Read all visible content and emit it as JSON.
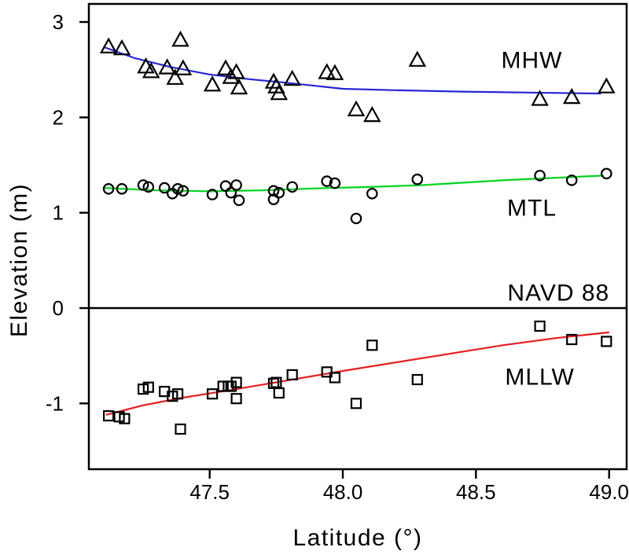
{
  "figure": {
    "background": "#ffffff",
    "text_color": "#000000",
    "axis_color": "#000000"
  },
  "chart_data": {
    "type": "scatter",
    "title": "",
    "xlabel": "Latitude (°)",
    "ylabel": "Elevation (m)",
    "xlim": [
      47.046,
      49.066
    ],
    "ylim": [
      -1.69,
      3.19
    ],
    "x_ticks": [
      47.5,
      48.0,
      48.5,
      49.0
    ],
    "x_tick_labels": [
      "47.5",
      "48.0",
      "48.5",
      "49.0"
    ],
    "y_ticks": [
      3,
      2,
      1,
      0,
      -1
    ],
    "y_tick_labels": [
      "3",
      "2",
      "1",
      "0",
      "-1"
    ],
    "grid": false,
    "legend_position": "in-plot-annotations",
    "reference_line": {
      "label": "NAVD 88",
      "y": 0,
      "color": "#000000"
    },
    "annotations": [
      {
        "text": "MHW",
        "x": 48.71,
        "y": 2.6,
        "color": "#000000"
      },
      {
        "text": "MTL",
        "x": 48.71,
        "y": 1.05,
        "color": "#000000"
      },
      {
        "text": "NAVD 88",
        "x": 48.81,
        "y": 0.16,
        "color": "#000000"
      },
      {
        "text": "MLLW",
        "x": 48.74,
        "y": -0.72,
        "color": "#000000"
      }
    ],
    "series": [
      {
        "name": "MHW",
        "marker": "triangle",
        "marker_color": "#000000",
        "trend_color": "#2626d6",
        "points": [
          [
            47.12,
            2.74
          ],
          [
            47.17,
            2.72
          ],
          [
            47.26,
            2.53
          ],
          [
            47.28,
            2.48
          ],
          [
            47.34,
            2.52
          ],
          [
            47.37,
            2.41
          ],
          [
            47.39,
            2.81
          ],
          [
            47.4,
            2.51
          ],
          [
            47.51,
            2.34
          ],
          [
            47.56,
            2.51
          ],
          [
            47.58,
            2.42
          ],
          [
            47.6,
            2.47
          ],
          [
            47.61,
            2.31
          ],
          [
            47.74,
            2.37
          ],
          [
            47.75,
            2.32
          ],
          [
            47.76,
            2.25
          ],
          [
            47.81,
            2.4
          ],
          [
            47.94,
            2.47
          ],
          [
            47.97,
            2.46
          ],
          [
            48.05,
            2.08
          ],
          [
            48.11,
            2.02
          ],
          [
            48.28,
            2.6
          ],
          [
            48.74,
            2.19
          ],
          [
            48.86,
            2.21
          ],
          [
            48.99,
            2.32
          ]
        ],
        "trend": [
          [
            47.1,
            2.74
          ],
          [
            47.22,
            2.62
          ],
          [
            47.35,
            2.53
          ],
          [
            47.5,
            2.45
          ],
          [
            47.65,
            2.4
          ],
          [
            47.8,
            2.36
          ],
          [
            48.0,
            2.3
          ],
          [
            48.2,
            2.285
          ],
          [
            48.45,
            2.27
          ],
          [
            48.7,
            2.26
          ],
          [
            48.97,
            2.25
          ]
        ]
      },
      {
        "name": "MTL",
        "marker": "circle",
        "marker_color": "#000000",
        "trend_color": "#00d41e",
        "points": [
          [
            47.12,
            1.25
          ],
          [
            47.17,
            1.25
          ],
          [
            47.25,
            1.29
          ],
          [
            47.27,
            1.27
          ],
          [
            47.33,
            1.26
          ],
          [
            47.36,
            1.2
          ],
          [
            47.38,
            1.25
          ],
          [
            47.4,
            1.23
          ],
          [
            47.51,
            1.19
          ],
          [
            47.56,
            1.28
          ],
          [
            47.58,
            1.21
          ],
          [
            47.6,
            1.29
          ],
          [
            47.61,
            1.13
          ],
          [
            47.74,
            1.23
          ],
          [
            47.74,
            1.14
          ],
          [
            47.76,
            1.21
          ],
          [
            47.81,
            1.27
          ],
          [
            47.94,
            1.33
          ],
          [
            47.97,
            1.31
          ],
          [
            48.05,
            0.94
          ],
          [
            48.11,
            1.2
          ],
          [
            48.28,
            1.35
          ],
          [
            48.74,
            1.39
          ],
          [
            48.86,
            1.34
          ],
          [
            48.99,
            1.41
          ]
        ],
        "trend": [
          [
            47.1,
            1.26
          ],
          [
            47.3,
            1.235
          ],
          [
            47.5,
            1.225
          ],
          [
            47.7,
            1.235
          ],
          [
            47.9,
            1.255
          ],
          [
            48.1,
            1.27
          ],
          [
            48.3,
            1.29
          ],
          [
            48.6,
            1.34
          ],
          [
            48.98,
            1.39
          ]
        ]
      },
      {
        "name": "MLLW",
        "marker": "square",
        "marker_color": "#000000",
        "trend_color": "#e81c1c",
        "points": [
          [
            47.12,
            -1.13
          ],
          [
            47.16,
            -1.14
          ],
          [
            47.18,
            -1.16
          ],
          [
            47.25,
            -0.85
          ],
          [
            47.27,
            -0.83
          ],
          [
            47.33,
            -0.875
          ],
          [
            47.36,
            -0.925
          ],
          [
            47.38,
            -0.9
          ],
          [
            47.39,
            -1.27
          ],
          [
            47.51,
            -0.9
          ],
          [
            47.55,
            -0.82
          ],
          [
            47.57,
            -0.82
          ],
          [
            47.58,
            -0.82
          ],
          [
            47.6,
            -0.78
          ],
          [
            47.6,
            -0.95
          ],
          [
            47.74,
            -0.79
          ],
          [
            47.75,
            -0.78
          ],
          [
            47.76,
            -0.89
          ],
          [
            47.81,
            -0.7
          ],
          [
            47.94,
            -0.67
          ],
          [
            47.97,
            -0.73
          ],
          [
            48.05,
            -1.0
          ],
          [
            48.11,
            -0.39
          ],
          [
            48.28,
            -0.75
          ],
          [
            48.74,
            -0.19
          ],
          [
            48.86,
            -0.33
          ],
          [
            48.99,
            -0.35
          ]
        ],
        "trend": [
          [
            47.11,
            -1.12
          ],
          [
            47.25,
            -1.02
          ],
          [
            47.4,
            -0.94
          ],
          [
            47.6,
            -0.85
          ],
          [
            47.8,
            -0.755
          ],
          [
            48.0,
            -0.66
          ],
          [
            48.2,
            -0.57
          ],
          [
            48.4,
            -0.48
          ],
          [
            48.6,
            -0.39
          ],
          [
            48.8,
            -0.315
          ],
          [
            49.0,
            -0.255
          ]
        ]
      }
    ]
  }
}
